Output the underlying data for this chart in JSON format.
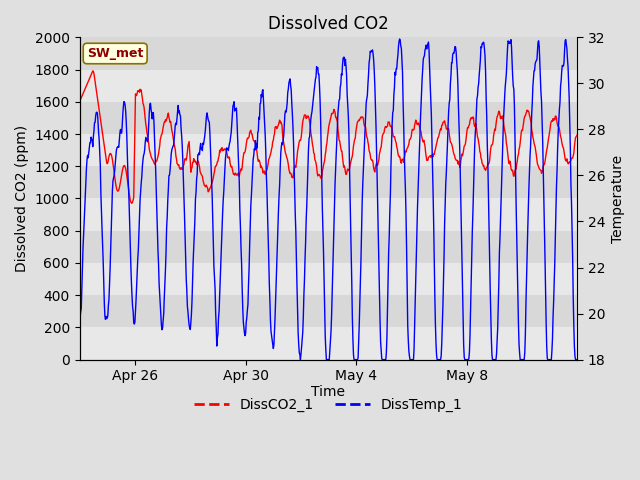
{
  "title": "Dissolved CO2",
  "xlabel": "Time",
  "ylabel_left": "Dissolved CO2 (ppm)",
  "ylabel_right": "Temperature",
  "ylim_left": [
    0,
    2000
  ],
  "ylim_right": [
    18,
    32
  ],
  "legend_labels": [
    "DissCO2_1",
    "DissTemp_1"
  ],
  "legend_colors": [
    "red",
    "blue"
  ],
  "annotation_text": "SW_met",
  "title_fontsize": 12,
  "axis_fontsize": 10,
  "tick_fontsize": 10,
  "fig_facecolor": "#e0e0e0",
  "plot_facecolor": "#f0f0f0",
  "band_colors": [
    "#e8e8e8",
    "#d8d8d8"
  ],
  "right_yticks": [
    18,
    20,
    22,
    24,
    26,
    28,
    30,
    32
  ],
  "left_yticks": [
    0,
    200,
    400,
    600,
    800,
    1000,
    1200,
    1400,
    1600,
    1800,
    2000
  ],
  "xtick_interval_days": 4
}
